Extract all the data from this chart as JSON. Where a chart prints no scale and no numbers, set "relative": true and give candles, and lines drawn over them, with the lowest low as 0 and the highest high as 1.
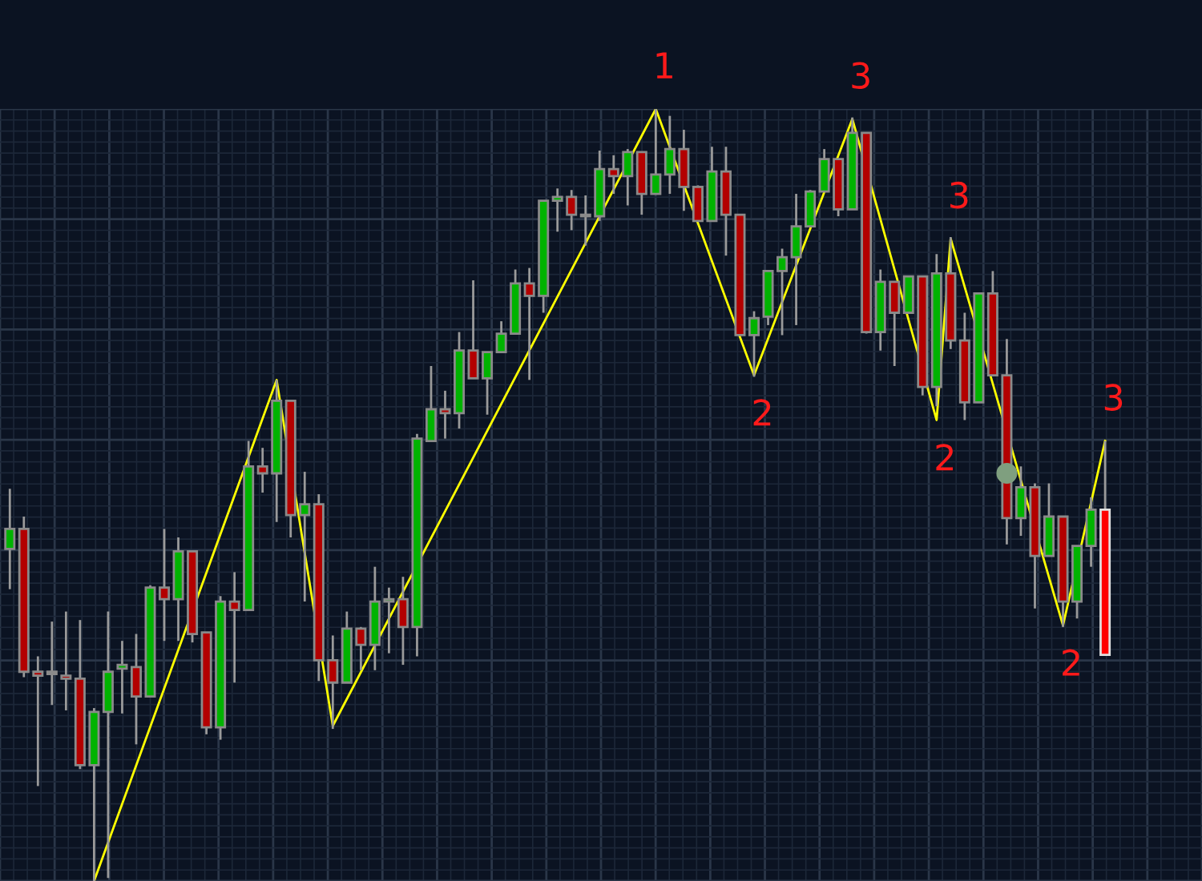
{
  "chart_data": {
    "type": "candlestick",
    "relative": true,
    "grid": true,
    "categories": [
      null,
      null,
      null,
      null,
      null,
      null,
      null,
      null,
      null,
      null,
      null,
      null,
      null,
      null,
      null,
      null,
      null,
      null,
      null,
      null,
      null,
      null,
      null,
      null,
      null,
      null,
      null,
      null,
      null,
      null,
      null,
      null,
      null,
      null,
      null,
      null,
      null,
      null,
      null,
      null,
      null,
      null,
      null,
      null,
      null,
      null,
      null,
      null,
      null,
      null,
      null,
      null,
      null,
      null,
      null,
      null,
      null,
      null,
      null,
      null,
      null,
      null,
      null,
      null,
      null,
      null,
      null,
      null,
      null,
      null,
      null,
      null,
      null,
      null,
      null,
      null,
      null,
      null,
      null
    ],
    "ohlc": [
      [
        0.43,
        0.508,
        0.378,
        0.456
      ],
      [
        0.456,
        0.472,
        0.264,
        0.271
      ],
      [
        0.271,
        0.291,
        0.123,
        0.266
      ],
      [
        0.268,
        0.336,
        0.228,
        0.268
      ],
      [
        0.266,
        0.349,
        0.221,
        0.262
      ],
      [
        0.262,
        0.338,
        0.145,
        0.15
      ],
      [
        0.15,
        0.224,
        0,
        0.219
      ],
      [
        0.219,
        0.349,
        0.004,
        0.271
      ],
      [
        0.275,
        0.311,
        0.217,
        0.28
      ],
      [
        0.277,
        0.32,
        0.177,
        0.239
      ],
      [
        0.239,
        0.383,
        0.239,
        0.38
      ],
      [
        0.38,
        0.456,
        0.311,
        0.365
      ],
      [
        0.365,
        0.445,
        0.311,
        0.427
      ],
      [
        0.427,
        0.427,
        0.309,
        0.32
      ],
      [
        0.322,
        0.322,
        0.19,
        0.199
      ],
      [
        0.199,
        0.369,
        0.183,
        0.362
      ],
      [
        0.362,
        0.4,
        0.257,
        0.351
      ],
      [
        0.351,
        0.57,
        0.351,
        0.537
      ],
      [
        0.537,
        0.561,
        0.503,
        0.528
      ],
      [
        0.528,
        0.649,
        0.465,
        0.622
      ],
      [
        0.622,
        0.622,
        0.445,
        0.474
      ],
      [
        0.474,
        0.53,
        0.362,
        0.488
      ],
      [
        0.488,
        0.501,
        0.259,
        0.286
      ],
      [
        0.286,
        0.318,
        0.197,
        0.257
      ],
      [
        0.257,
        0.349,
        0.257,
        0.327
      ],
      [
        0.327,
        0.329,
        0.273,
        0.306
      ],
      [
        0.306,
        0.407,
        0.273,
        0.362
      ],
      [
        0.362,
        0.38,
        0.295,
        0.365
      ],
      [
        0.365,
        0.394,
        0.28,
        0.329
      ],
      [
        0.329,
        0.579,
        0.291,
        0.573
      ],
      [
        0.57,
        0.667,
        0.57,
        0.611
      ],
      [
        0.611,
        0.635,
        0.573,
        0.606
      ],
      [
        0.606,
        0.711,
        0.586,
        0.687
      ],
      [
        0.687,
        0.778,
        0.651,
        0.651
      ],
      [
        0.651,
        0.685,
        0.604,
        0.685
      ],
      [
        0.685,
        0.725,
        0.685,
        0.709
      ],
      [
        0.709,
        0.792,
        0.709,
        0.774
      ],
      [
        0.774,
        0.794,
        0.649,
        0.758
      ],
      [
        0.758,
        0.881,
        0.736,
        0.881
      ],
      [
        0.881,
        0.897,
        0.841,
        0.886
      ],
      [
        0.886,
        0.895,
        0.843,
        0.863
      ],
      [
        0.863,
        0.888,
        0.823,
        0.861
      ],
      [
        0.861,
        0.946,
        0.855,
        0.922
      ],
      [
        0.922,
        0.94,
        0.89,
        0.913
      ],
      [
        0.913,
        0.948,
        0.875,
        0.944
      ],
      [
        0.944,
        0.944,
        0.863,
        0.89
      ],
      [
        0.89,
        1,
        0.89,
        0.915
      ],
      [
        0.915,
        0.991,
        0.89,
        0.948
      ],
      [
        0.948,
        0.973,
        0.868,
        0.899
      ],
      [
        0.899,
        0.901,
        0.855,
        0.855
      ],
      [
        0.855,
        0.951,
        0.855,
        0.919
      ],
      [
        0.919,
        0.951,
        0.81,
        0.863
      ],
      [
        0.863,
        0.863,
        0.707,
        0.707
      ],
      [
        0.707,
        0.738,
        0.653,
        0.729
      ],
      [
        0.731,
        0.79,
        0.72,
        0.79
      ],
      [
        0.79,
        0.819,
        0.707,
        0.808
      ],
      [
        0.808,
        0.89,
        0.72,
        0.848
      ],
      [
        0.848,
        0.895,
        0.848,
        0.893
      ],
      [
        0.893,
        0.948,
        0.893,
        0.935
      ],
      [
        0.935,
        0.935,
        0.861,
        0.87
      ],
      [
        0.87,
        0.989,
        0.87,
        0.969
      ],
      [
        0.969,
        0.969,
        0.709,
        0.711
      ],
      [
        0.711,
        0.792,
        0.687,
        0.776
      ],
      [
        0.776,
        0.776,
        0.667,
        0.736
      ],
      [
        0.736,
        0.783,
        0.736,
        0.783
      ],
      [
        0.783,
        0.783,
        0.629,
        0.64
      ],
      [
        0.64,
        0.812,
        0.615,
        0.787
      ],
      [
        0.787,
        0.834,
        0.689,
        0.7
      ],
      [
        0.7,
        0.736,
        0.597,
        0.62
      ],
      [
        0.62,
        0.761,
        0.62,
        0.761
      ],
      [
        0.761,
        0.79,
        0.655,
        0.655
      ],
      [
        0.655,
        0.702,
        0.436,
        0.47
      ],
      [
        0.47,
        0.537,
        0.447,
        0.51
      ],
      [
        0.51,
        0.515,
        0.353,
        0.421
      ],
      [
        0.421,
        0.515,
        0.421,
        0.472
      ],
      [
        0.472,
        0.472,
        0.329,
        0.362
      ],
      [
        0.362,
        0.434,
        0.34,
        0.434
      ],
      [
        0.434,
        0.497,
        0.407,
        0.481
      ],
      [
        0.481,
        0.57,
        0.293,
        0.293
      ]
    ],
    "colors": [
      "#00b300",
      "#b30000",
      "#b30000",
      "#b30000",
      "#b30000",
      "#b30000",
      "#00b300",
      "#00b300",
      "#00b300",
      "#b30000",
      "#00b300",
      "#b30000",
      "#00b300",
      "#b30000",
      "#b30000",
      "#00b300",
      "#b30000",
      "#00b300",
      "#b30000",
      "#00b300",
      "#b30000",
      "#00b300",
      "#b30000",
      "#b30000",
      "#00b300",
      "#b30000",
      "#00b300",
      "#00b300",
      "#b30000",
      "#00b300",
      "#00b300",
      "#b30000",
      "#00b300",
      "#b30000",
      "#00b300",
      "#00b300",
      "#00b300",
      "#b30000",
      "#00b300",
      "#00b300",
      "#b30000",
      "#b30000",
      "#00b300",
      "#b30000",
      "#00b300",
      "#b30000",
      "#00b300",
      "#00b300",
      "#b30000",
      "#b30000",
      "#00b300",
      "#b30000",
      "#b30000",
      "#00b300",
      "#00b300",
      "#00b300",
      "#00b300",
      "#00b300",
      "#00b300",
      "#b30000",
      "#00b300",
      "#b30000",
      "#00b300",
      "#b30000",
      "#00b300",
      "#b30000",
      "#00b300",
      "#b30000",
      "#b30000",
      "#00b300",
      "#b30000",
      "#b30000",
      "#00b300",
      "#b30000",
      "#00b300",
      "#b30000",
      "#00b300",
      "#00b300",
      "#ff0000"
    ],
    "series": [
      {
        "type": "line",
        "color": "#ffff00",
        "values": [
          null,
          null,
          null,
          null,
          null,
          null,
          0,
          null,
          null,
          null,
          null,
          null,
          null,
          null,
          null,
          null,
          null,
          null,
          null,
          0.649,
          null,
          null,
          null,
          0.201,
          null,
          null,
          null,
          null,
          null,
          null,
          null,
          null,
          null,
          null,
          null,
          null,
          null,
          null,
          null,
          null,
          null,
          null,
          null,
          null,
          null,
          null,
          1,
          null,
          null,
          null,
          null,
          null,
          null,
          0.655,
          null,
          null,
          null,
          null,
          null,
          null,
          0.987,
          null,
          null,
          null,
          null,
          null,
          0.597,
          0.832,
          null,
          null,
          null,
          null,
          null,
          null,
          null,
          0.331,
          null,
          null,
          0.57
        ]
      },
      {
        "type": "scatter",
        "color": "#7f9f7f",
        "values": [
          null,
          null,
          null,
          null,
          null,
          null,
          null,
          null,
          null,
          null,
          null,
          null,
          null,
          null,
          null,
          null,
          null,
          null,
          null,
          null,
          null,
          null,
          null,
          null,
          null,
          null,
          null,
          null,
          null,
          null,
          null,
          null,
          null,
          null,
          null,
          null,
          null,
          null,
          null,
          null,
          null,
          null,
          null,
          null,
          null,
          null,
          null,
          null,
          null,
          null,
          null,
          null,
          null,
          null,
          null,
          null,
          null,
          null,
          null,
          null,
          null,
          null,
          null,
          null,
          null,
          null,
          null,
          null,
          null,
          null,
          null,
          0.528,
          null,
          null,
          null,
          null,
          null,
          null,
          null
        ]
      }
    ],
    "annotations": [
      "1",
      "2",
      "3",
      "2",
      "3",
      "2",
      "3"
    ]
  }
}
